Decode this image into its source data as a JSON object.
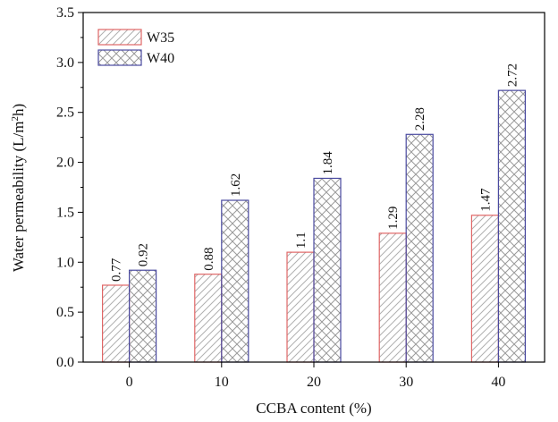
{
  "chart_data": {
    "type": "bar",
    "categories": [
      "0",
      "10",
      "20",
      "30",
      "40"
    ],
    "series": [
      {
        "name": "W35",
        "values": [
          0.77,
          0.88,
          1.1,
          1.29,
          1.47
        ],
        "value_labels": [
          "0.77",
          "0.88",
          "1.1",
          "1.29",
          "1.47"
        ],
        "color": "#e06666",
        "pattern": "diagonal"
      },
      {
        "name": "W40",
        "values": [
          0.92,
          1.62,
          1.84,
          2.28,
          2.72
        ],
        "value_labels": [
          "0.92",
          "1.62",
          "1.84",
          "2.28",
          "2.72"
        ],
        "color": "#4a4aa0",
        "pattern": "crosshatch"
      }
    ],
    "xlabel": "CCBA content (%)",
    "ylabel_main": "Water permeability (L/m",
    "ylabel_sup": "2",
    "ylabel_end": "h)",
    "ylim": [
      0,
      3.5
    ],
    "yticks": [
      "0.0",
      "0.5",
      "1.0",
      "1.5",
      "2.0",
      "2.5",
      "3.0",
      "3.5"
    ],
    "legend_position": "top-left",
    "grid": false
  }
}
